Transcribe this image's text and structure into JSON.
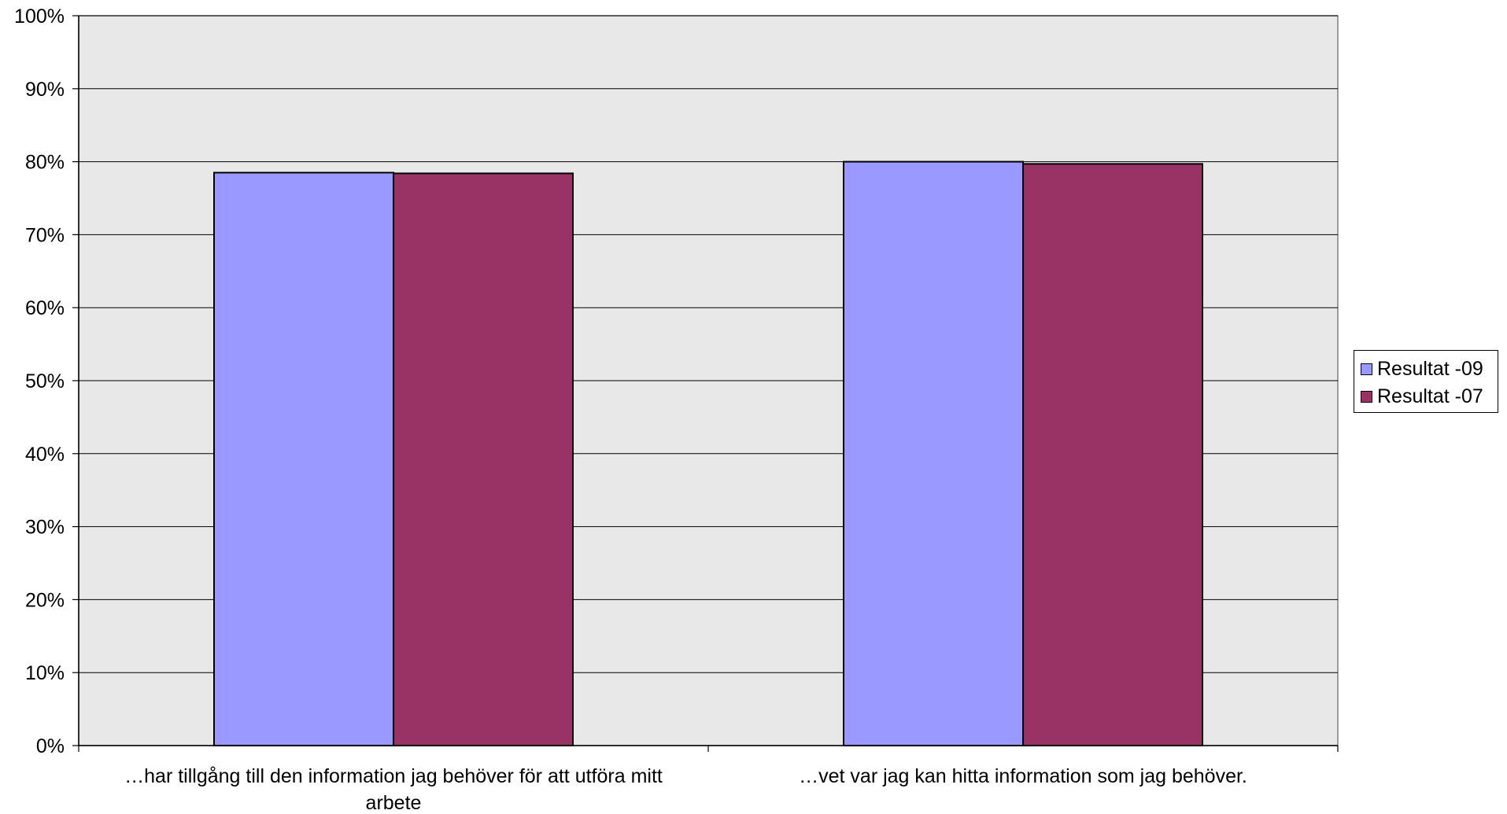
{
  "chart_data": {
    "type": "bar",
    "categories": [
      "…har tillgång till den information jag behöver för att utföra mitt arbete",
      "…vet var jag kan hitta information som jag behöver."
    ],
    "category_label_lines": [
      [
        "…har tillgång till den information jag behöver för att utföra mitt",
        "arbete"
      ],
      [
        "…vet var jag kan hitta information som jag behöver."
      ]
    ],
    "series": [
      {
        "name": "Resultat -09",
        "values": [
          78.5,
          80.0
        ],
        "color": "#9999ff"
      },
      {
        "name": "Resultat -07",
        "values": [
          78.4,
          79.7
        ],
        "color": "#993366"
      }
    ],
    "ylim": [
      0,
      100
    ],
    "yticks": [
      0,
      10,
      20,
      30,
      40,
      50,
      60,
      70,
      80,
      90,
      100
    ],
    "ytick_labels": [
      "0%",
      "10%",
      "20%",
      "30%",
      "40%",
      "50%",
      "60%",
      "70%",
      "80%",
      "90%",
      "100%"
    ],
    "title": "",
    "xlabel": "",
    "ylabel": "",
    "grid": true,
    "plot_background": "#e8e8e8",
    "legend_position": "right"
  }
}
